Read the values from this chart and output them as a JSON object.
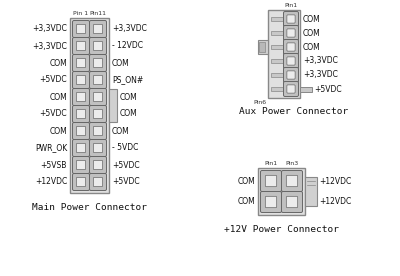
{
  "bg_color": "#ffffff",
  "connector_fill": "#e0e0e0",
  "connector_border": "#888888",
  "pin_outer_fill": "#c8c8c8",
  "pin_inner_fill": "#f0f0f0",
  "pin_border": "#666666",
  "text_color": "#111111",
  "main_connector": {
    "title": "Main Power Connector",
    "pin1_label": "Pin 1",
    "pin11_label": "Pin11",
    "left_labels": [
      "+3,3VDC",
      "+3,3VDC",
      "COM",
      "+5VDC",
      "COM",
      "+5VDC",
      "COM",
      "PWR_OK",
      "+5VSB",
      "+12VDC"
    ],
    "right_labels": [
      "+3,3VDC",
      "- 12VDC",
      "COM",
      "PS_ON#",
      "COM",
      "COM",
      "COM",
      "- 5VDC",
      "+5VDC",
      "+5VDC"
    ],
    "tab_rows": [
      4,
      5
    ],
    "rows": 10,
    "cols": 2
  },
  "aux_connector": {
    "title": "Aux Power Connector",
    "pin1_label": "Pin1",
    "pin6_label": "Pin6",
    "right_labels": [
      "COM",
      "COM",
      "COM",
      "+3,3VDC",
      "+3,3VDC",
      "+5VDC"
    ],
    "tab_row": 5,
    "left_tab_rows": [
      2
    ],
    "rows": 6,
    "cols": 2
  },
  "atx12v_connector": {
    "title": "+12V Power Connector",
    "pin1_label": "Pin1",
    "pin3_label": "Pin3",
    "left_labels": [
      "COM",
      "COM"
    ],
    "right_labels": [
      "+12VDC",
      "+12VDC"
    ],
    "rows": 2,
    "cols": 2
  }
}
